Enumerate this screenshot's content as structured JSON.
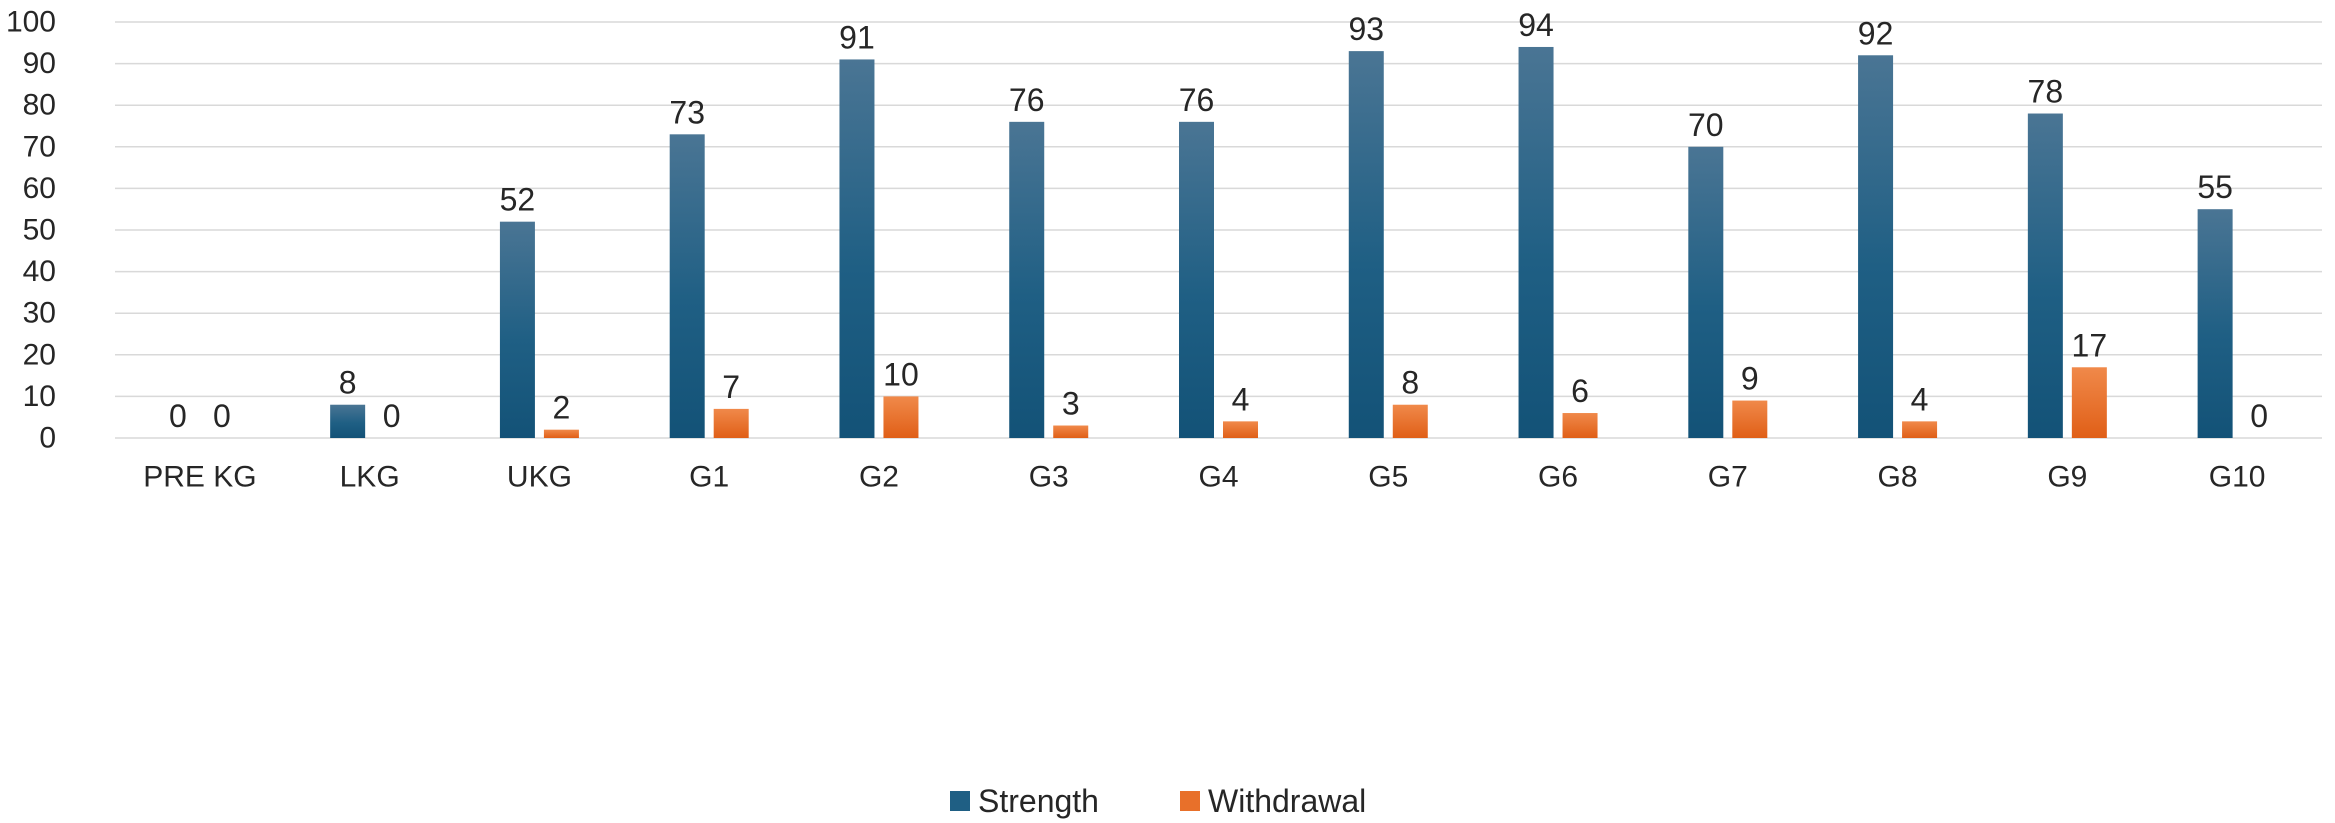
{
  "chart_data": {
    "type": "bar",
    "title": "",
    "xlabel": "",
    "ylabel": "",
    "categories": [
      "PRE KG",
      "LKG",
      "UKG",
      "G1",
      "G2",
      "G3",
      "G4",
      "G5",
      "G6",
      "G7",
      "G8",
      "G9",
      "G10"
    ],
    "series": [
      {
        "name": "Strength",
        "values": [
          0,
          8,
          52,
          73,
          91,
          76,
          76,
          93,
          94,
          70,
          92,
          78,
          55
        ],
        "color": "#1f5f84"
      },
      {
        "name": "Withdrawal",
        "values": [
          0,
          0,
          2,
          7,
          10,
          3,
          4,
          8,
          6,
          9,
          4,
          17,
          0
        ],
        "color": "#e8702a"
      }
    ],
    "ylim": [
      0,
      100
    ],
    "yticks": [
      "0",
      "10",
      "20",
      "30",
      "40",
      "50",
      "60",
      "70",
      "80",
      "90",
      "100"
    ],
    "grid": true,
    "legend_position": "bottom",
    "data_labels": true
  }
}
